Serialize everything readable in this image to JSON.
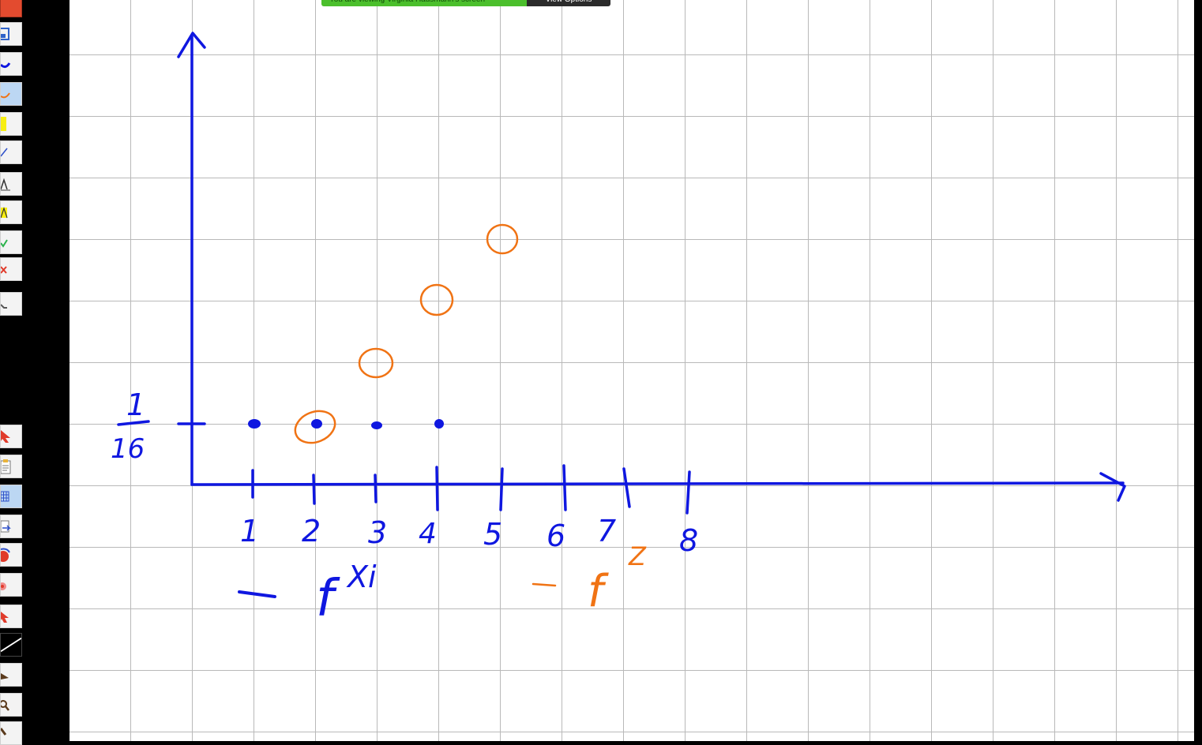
{
  "share_banner": {
    "status_text": "You are viewing Virginia Hausmann's screen",
    "view_options_label": "View Options"
  },
  "whiteboard": {
    "y_tick_label": {
      "numerator": "1",
      "denominator": "16"
    },
    "x_tick_labels": [
      "1",
      "2",
      "3",
      "4",
      "5",
      "6",
      "7",
      "8"
    ],
    "legend_blue": "f",
    "legend_blue_superscript": "Xi",
    "legend_orange": "f",
    "legend_orange_superscript": "Z",
    "colors": {
      "blue_ink": "#0f17e0",
      "orange_ink": "#f07314",
      "grid": "#b9b9b9"
    }
  },
  "toolbar": {
    "tools_top": [
      "save-icon",
      "pen-blue-icon",
      "pen-orange-icon",
      "highlighter-yellow-icon",
      "line-icon",
      "text-icon",
      "text-highlight-icon",
      "check-icon",
      "cross-icon",
      "eraser-icon"
    ],
    "tools_bottom": [
      "pointer-red-icon",
      "clipboard-icon",
      "grid-icon",
      "export-icon",
      "spotlight-icon",
      "record-icon",
      "arrow-icon",
      "slash-icon",
      "stamp-icon",
      "search-icon",
      "brush-icon"
    ]
  }
}
